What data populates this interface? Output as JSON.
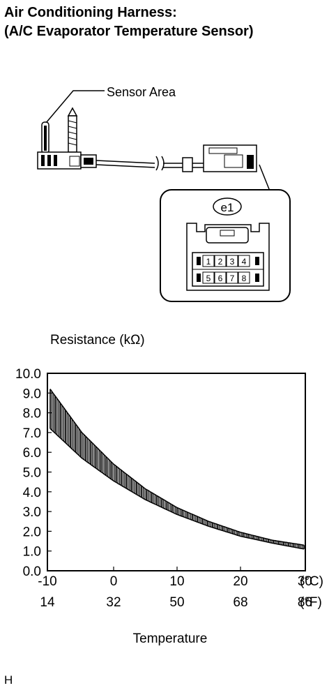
{
  "title_line1": "Air Conditioning Harness:",
  "title_line2": "(A/C Evaporator Temperature Sensor)",
  "diagram": {
    "sensor_label": "Sensor Area",
    "connector_id": "e1",
    "pins_top": [
      "1",
      "2",
      "3",
      "4"
    ],
    "pins_bottom": [
      "5",
      "6",
      "7",
      "8"
    ]
  },
  "chart_data": {
    "type": "area",
    "ylabel": "Resistance (kΩ)",
    "xlabel": "Temperature",
    "ylim": [
      0,
      10
    ],
    "yticks": [
      "10.0",
      "9.0",
      "8.0",
      "7.0",
      "6.0",
      "5.0",
      "4.0",
      "3.0",
      "2.0",
      "1.0",
      "0.0"
    ],
    "xlim": [
      -10,
      30
    ],
    "xticks_c": [
      "-10",
      "0",
      "10",
      "20",
      "30"
    ],
    "xticks_f": [
      "14",
      "32",
      "50",
      "68",
      "86"
    ],
    "unit_c": "(°C)",
    "unit_f": "(°F)",
    "x": [
      -10,
      -5,
      0,
      5,
      10,
      15,
      20,
      25,
      30
    ],
    "series": [
      {
        "values": [
          9.2,
          7.0,
          5.4,
          4.15,
          3.2,
          2.5,
          1.95,
          1.55,
          1.3
        ]
      },
      {
        "values": [
          7.2,
          5.7,
          4.55,
          3.6,
          2.85,
          2.25,
          1.75,
          1.4,
          1.1
        ]
      }
    ],
    "grid": false,
    "footnote": "H"
  }
}
